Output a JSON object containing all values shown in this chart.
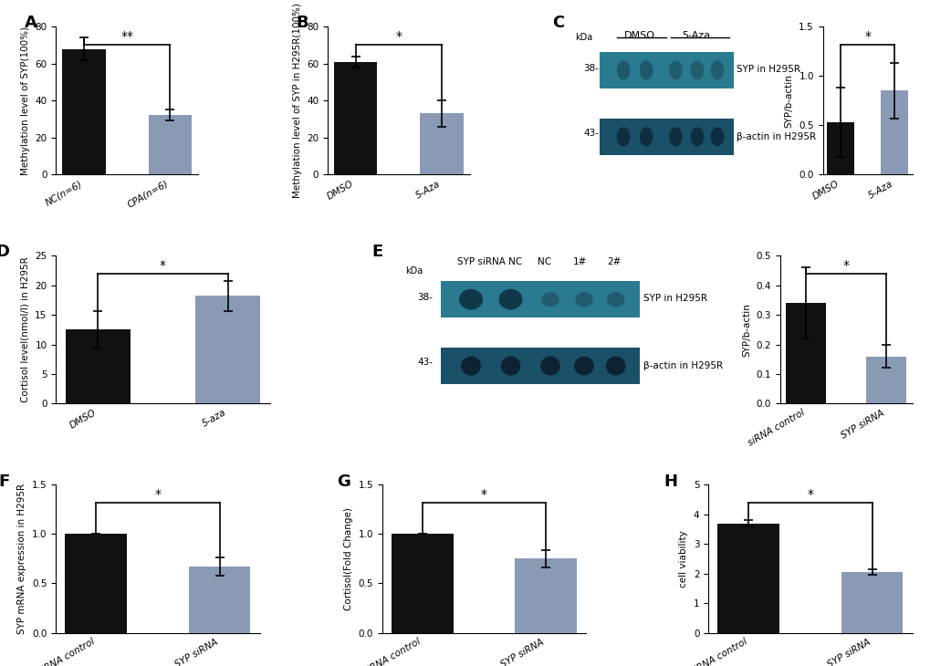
{
  "panel_A": {
    "categories": [
      "NC(n=6)",
      "CPA(n=6)"
    ],
    "values": [
      68,
      32
    ],
    "errors": [
      6,
      3
    ],
    "colors": [
      "#111111",
      "#8a9ab5"
    ],
    "ylabel": "Methylation level of SYP(100%)",
    "ylim": [
      0,
      80
    ],
    "yticks": [
      0,
      20,
      40,
      60,
      80
    ],
    "sig": "**",
    "label": "A"
  },
  "panel_B": {
    "categories": [
      "DMSO",
      "5-Aza"
    ],
    "values": [
      61,
      33
    ],
    "errors": [
      3,
      7
    ],
    "colors": [
      "#111111",
      "#8a9ab5"
    ],
    "ylabel": "Methylation level of SYP in H295R(100%)",
    "ylim": [
      0,
      80
    ],
    "yticks": [
      0,
      20,
      40,
      60,
      80
    ],
    "sig": "*",
    "label": "B"
  },
  "panel_C_bar": {
    "categories": [
      "DMSO",
      "5-Aza"
    ],
    "values": [
      0.53,
      0.85
    ],
    "errors": [
      0.35,
      0.28
    ],
    "colors": [
      "#111111",
      "#8a9ab5"
    ],
    "ylabel": "SYP/b-actin",
    "ylim": [
      0.0,
      1.5
    ],
    "yticks": [
      0.0,
      0.5,
      1.0,
      1.5
    ],
    "sig": "*",
    "label": "C"
  },
  "panel_D": {
    "categories": [
      "DMSO",
      "5-aza"
    ],
    "values": [
      12.5,
      18.2
    ],
    "errors": [
      3.2,
      2.5
    ],
    "colors": [
      "#111111",
      "#8a9ab5"
    ],
    "ylabel": "Cortisol level(nmol/l) in H295R",
    "ylim": [
      0,
      25
    ],
    "yticks": [
      0,
      5,
      10,
      15,
      20,
      25
    ],
    "sig": "*",
    "label": "D"
  },
  "panel_E_bar": {
    "categories": [
      "siRNA control",
      "SYP siRNA"
    ],
    "values": [
      0.34,
      0.16
    ],
    "errors": [
      0.12,
      0.04
    ],
    "colors": [
      "#111111",
      "#8a9ab5"
    ],
    "ylabel": "SYP/b-actin",
    "ylim": [
      0.0,
      0.5
    ],
    "yticks": [
      0.0,
      0.1,
      0.2,
      0.3,
      0.4,
      0.5
    ],
    "sig": "*",
    "label": "E"
  },
  "panel_F": {
    "categories": [
      "siRNA control",
      "SYP siRNA"
    ],
    "values": [
      1.0,
      0.67
    ],
    "errors": [
      0.0,
      0.09
    ],
    "colors": [
      "#111111",
      "#8a9ab5"
    ],
    "ylabel": "SYP mRNA expression in H295R",
    "ylim": [
      0.0,
      1.5
    ],
    "yticks": [
      0.0,
      0.5,
      1.0,
      1.5
    ],
    "sig": "*",
    "label": "F"
  },
  "panel_G": {
    "categories": [
      "siRNA control",
      "SYP siRNA"
    ],
    "values": [
      1.0,
      0.75
    ],
    "errors": [
      0.0,
      0.09
    ],
    "colors": [
      "#111111",
      "#8a9ab5"
    ],
    "ylabel": "Cortisol(Fold Change)",
    "ylim": [
      0.0,
      1.5
    ],
    "yticks": [
      0.0,
      0.5,
      1.0,
      1.5
    ],
    "sig": "*",
    "label": "G"
  },
  "panel_H": {
    "categories": [
      "siRNA control",
      "SYP siRNA"
    ],
    "values": [
      3.7,
      2.05
    ],
    "errors": [
      0.12,
      0.08
    ],
    "colors": [
      "#111111",
      "#8a9ab5"
    ],
    "ylabel": "cell viability",
    "ylim": [
      0,
      5
    ],
    "yticks": [
      0,
      1,
      2,
      3,
      4,
      5
    ],
    "sig": "*",
    "label": "H"
  },
  "bar_width": 0.5,
  "tick_fontsize": 7.5,
  "label_fontsize": 7.5,
  "panel_label_fontsize": 13,
  "sig_fontsize": 10,
  "background_color": "#ffffff",
  "wb_bg": "#6dbcc8",
  "wb_band1": "#2a7a90",
  "wb_band2": "#1a5068"
}
